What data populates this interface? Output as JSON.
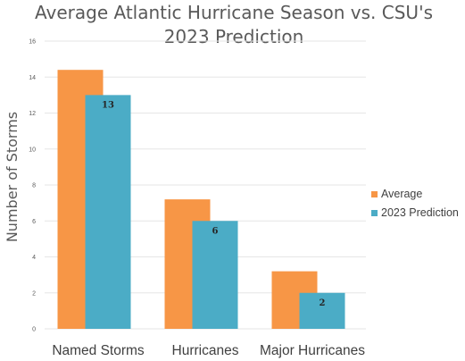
{
  "chart_data": {
    "type": "bar",
    "title_lines": [
      "Average Atlantic Hurricane Season vs. CSU's",
      "2023 Prediction"
    ],
    "ylabel": "Number of Storms",
    "xlabel": "",
    "ylim": [
      0,
      16
    ],
    "yticks": [
      0,
      2,
      4,
      6,
      8,
      10,
      12,
      14,
      16
    ],
    "grid": true,
    "legend_position": "right",
    "categories": [
      "Named Storms",
      "Hurricanes",
      "Major Hurricanes"
    ],
    "series": [
      {
        "name": "Average",
        "values": [
          14.4,
          7.2,
          3.2
        ],
        "color": "#f79646",
        "data_labels": [
          "",
          "",
          ""
        ]
      },
      {
        "name": "2023 Prediction",
        "values": [
          13,
          6,
          2
        ],
        "color": "#4bacc6",
        "data_labels": [
          "13",
          "6",
          "2"
        ]
      }
    ]
  }
}
